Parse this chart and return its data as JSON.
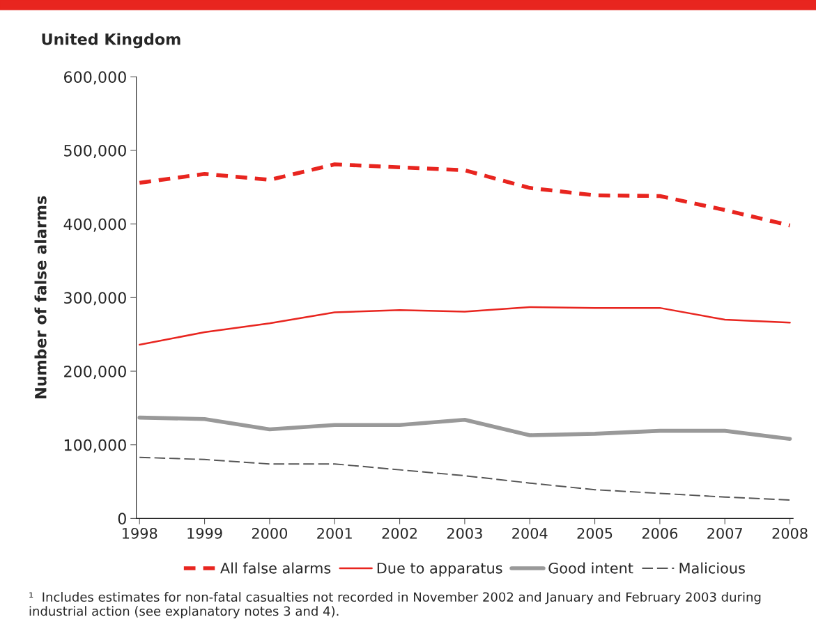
{
  "chart_data": {
    "type": "line",
    "title": "United Kingdom",
    "ylabel": "Number of false alarms",
    "categories": [
      "1998",
      "1999",
      "2000",
      "2001",
      "2002",
      "2003",
      "2004",
      "2005",
      "2006",
      "2007",
      "2008"
    ],
    "series": [
      {
        "name": "All false alarms",
        "color": "#e8251f",
        "line_style": "dashed",
        "values": [
          456000,
          468000,
          460000,
          481000,
          477000,
          473000,
          449000,
          439000,
          438000,
          419000,
          398000
        ]
      },
      {
        "name": "Due to apparatus",
        "color": "#e8251f",
        "line_style": "solid",
        "values": [
          236000,
          253000,
          265000,
          280000,
          283000,
          281000,
          287000,
          286000,
          286000,
          270000,
          266000
        ]
      },
      {
        "name": "Good intent",
        "color": "#999999",
        "line_style": "solid",
        "values": [
          137000,
          135000,
          121000,
          127000,
          127000,
          134000,
          113000,
          115000,
          119000,
          119000,
          108000
        ]
      },
      {
        "name": "Malicious",
        "color": "#555555",
        "line_style": "dashed",
        "values": [
          83000,
          80000,
          74000,
          74000,
          66000,
          58000,
          48000,
          39000,
          34000,
          29000,
          25000
        ]
      }
    ],
    "ylim": [
      0,
      600000
    ],
    "yticks": [
      {
        "value": 0,
        "label": "0"
      },
      {
        "value": 100000,
        "label": "100,000"
      },
      {
        "value": 200000,
        "label": "200,000"
      },
      {
        "value": 300000,
        "label": "300,000"
      },
      {
        "value": 400000,
        "label": "400,000"
      },
      {
        "value": 500000,
        "label": "500,000"
      },
      {
        "value": 600000,
        "label": "600,000"
      }
    ],
    "grid": false,
    "legend": "bottom",
    "marker": "none",
    "annotations": [
      "¹  Includes estimates for non-fatal casualties not recorded in November 2002 and January and February 2003 during industrial action (see explanatory notes 3 and 4)."
    ]
  }
}
